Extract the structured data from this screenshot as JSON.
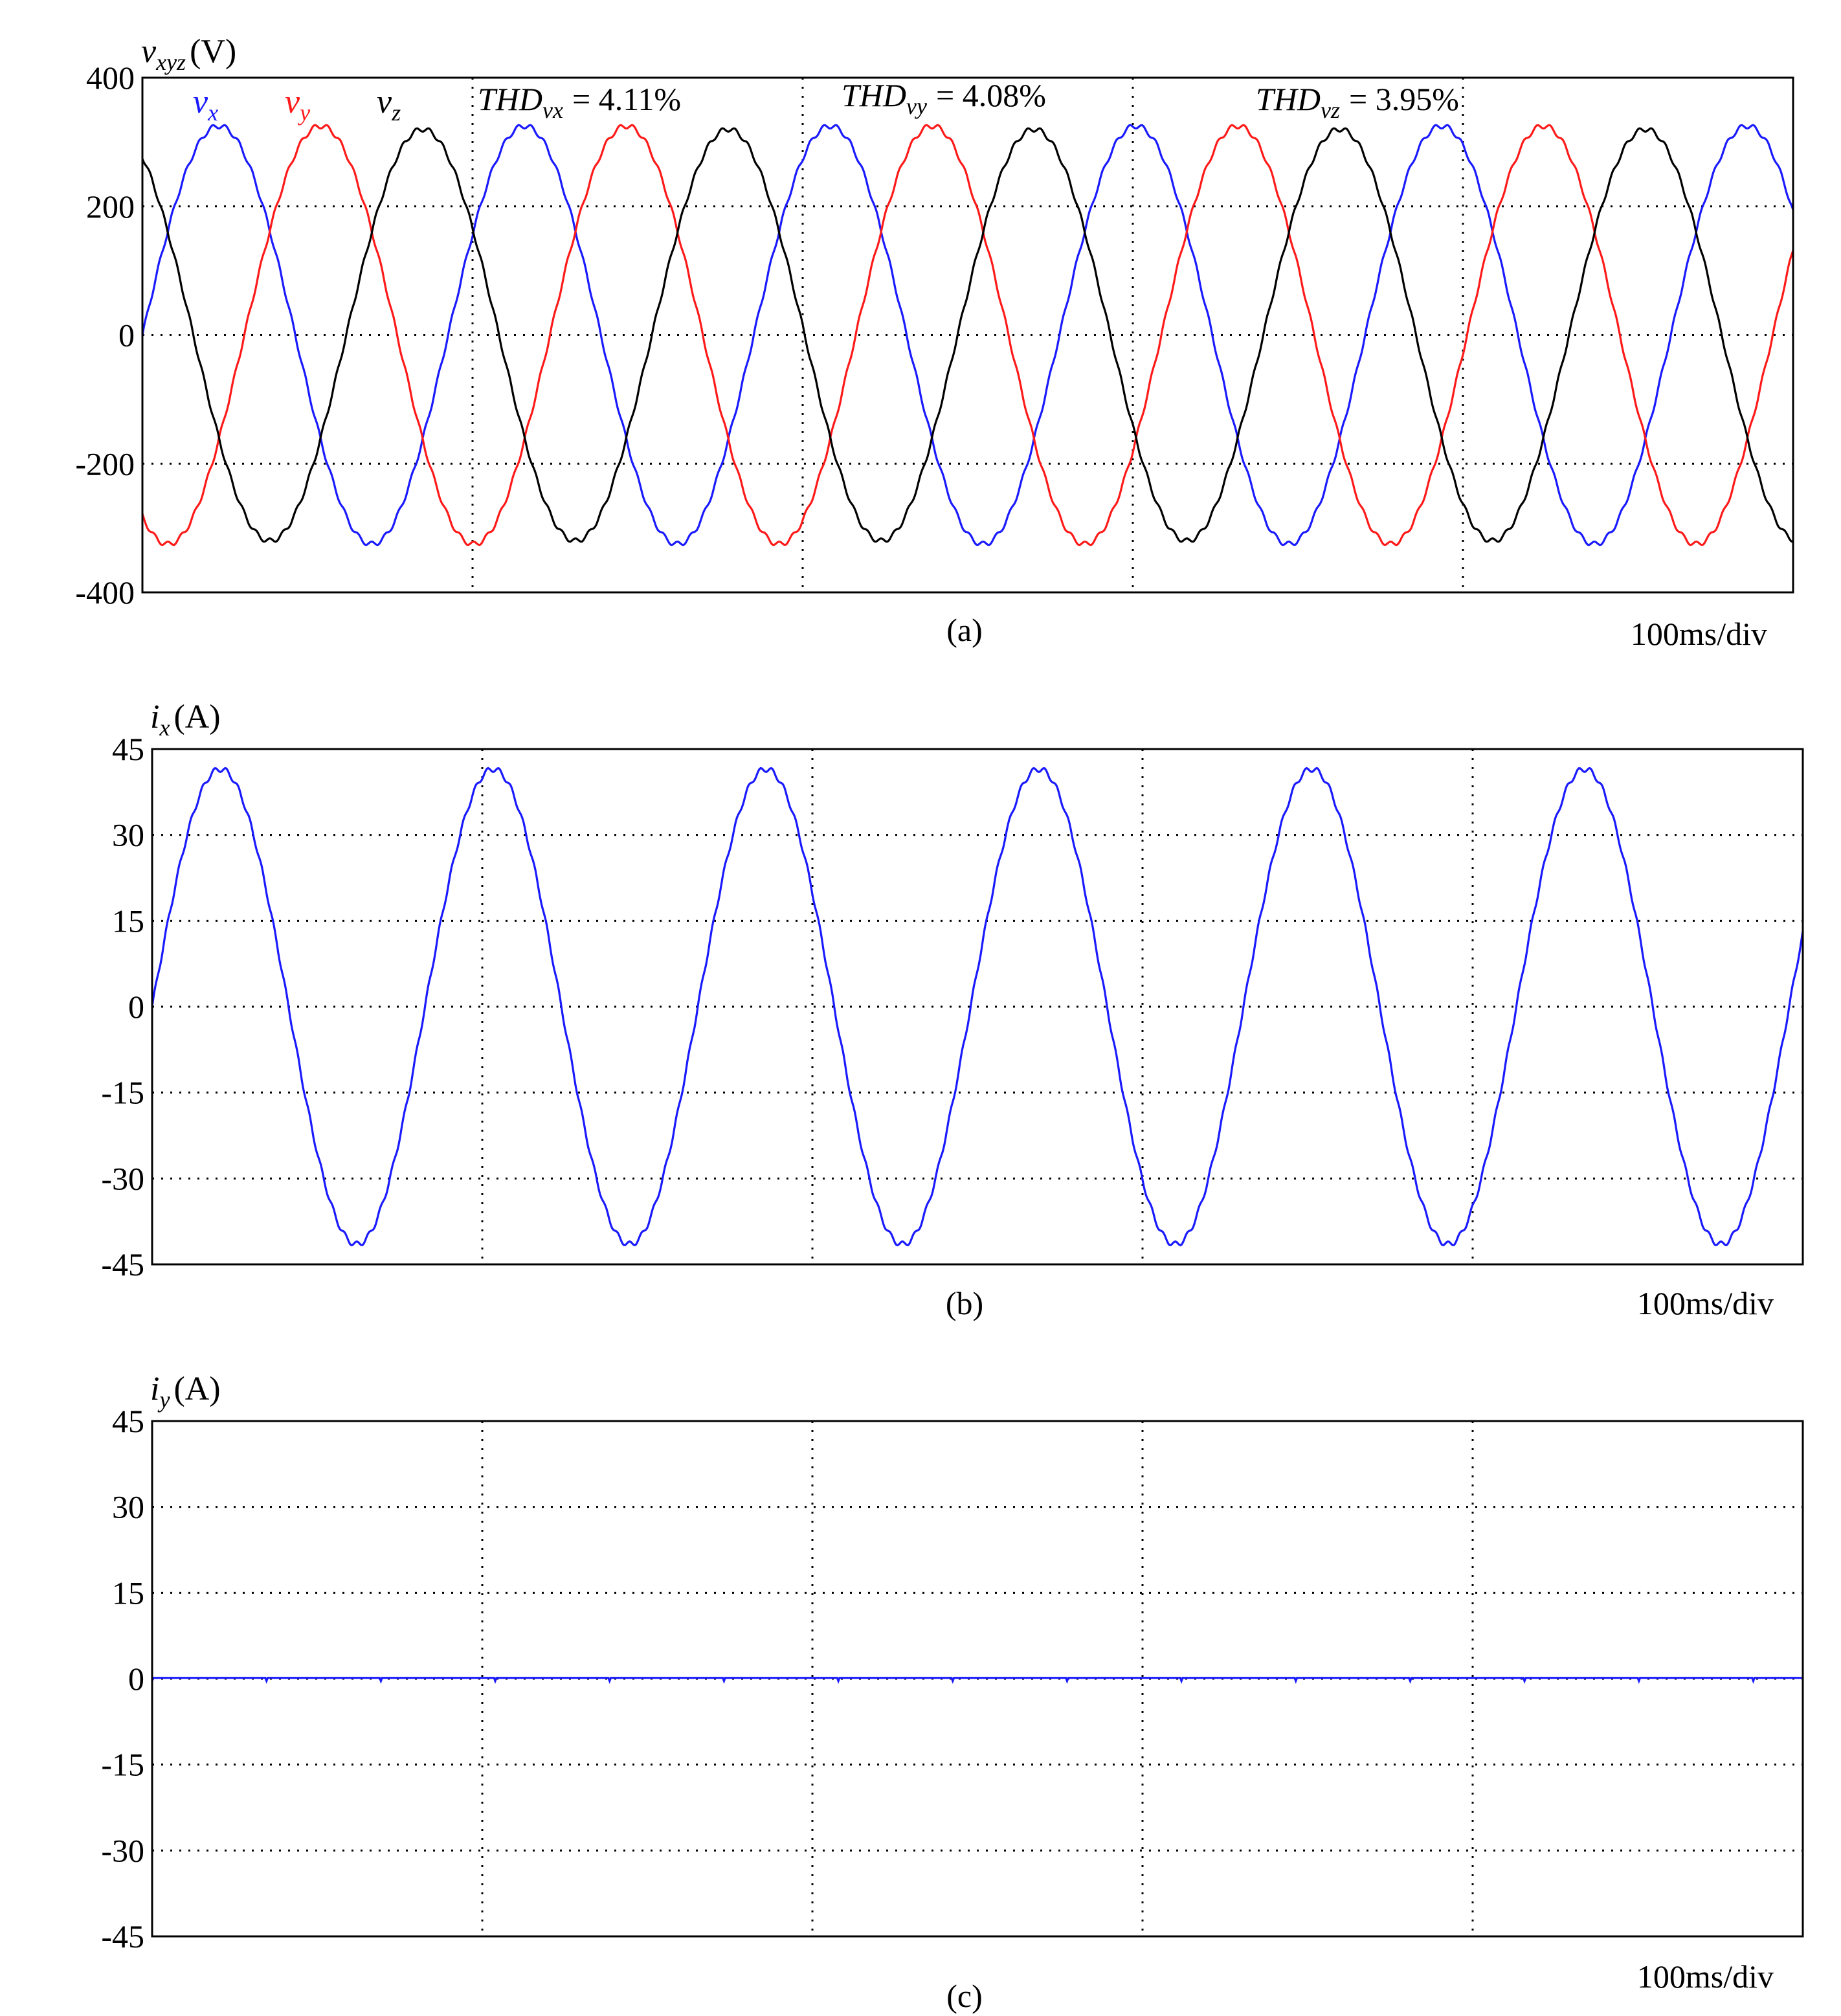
{
  "chart_data": [
    {
      "panel": "a",
      "type": "line",
      "ylabel": {
        "main": "v",
        "sub": "xyz",
        "unit": "(V)"
      },
      "ylim": [
        -400,
        400
      ],
      "yticks": [
        "400",
        "200",
        "0",
        "-200",
        "-400"
      ],
      "ytick_values": [
        400,
        200,
        0,
        -200,
        -400
      ],
      "x_divisions": 5,
      "x_range_ms": [
        0,
        500
      ],
      "grid": true,
      "caption": "(a)",
      "timebase": "100ms/div",
      "series": [
        {
          "name": "v_x",
          "label_main": "v",
          "label_sub": "x",
          "color": "#1a1aff",
          "amplitude": 325,
          "cycles": 5.4,
          "phase_deg": 0
        },
        {
          "name": "v_y",
          "label_main": "v",
          "label_sub": "y",
          "color": "#ff1a1a",
          "amplitude": 325,
          "cycles": 5.4,
          "phase_deg": -120
        },
        {
          "name": "v_z",
          "label_main": "v",
          "label_sub": "z",
          "color": "#000000",
          "amplitude": 320,
          "cycles": 5.4,
          "phase_deg": 120
        }
      ],
      "annotations": [
        {
          "main": "THD",
          "sub": "vx",
          "value": "= 4.11%"
        },
        {
          "main": "THD",
          "sub": "vy",
          "value": "= 4.08%"
        },
        {
          "main": "THD",
          "sub": "vz",
          "value": "= 3.95%"
        }
      ]
    },
    {
      "panel": "b",
      "type": "line",
      "ylabel": {
        "main": "i",
        "sub": "x",
        "unit": "(A)"
      },
      "ylim": [
        -45,
        45
      ],
      "yticks": [
        "45",
        "30",
        "15",
        "0",
        "-15",
        "-30",
        "-45"
      ],
      "ytick_values": [
        45,
        30,
        15,
        0,
        -15,
        -30,
        -45
      ],
      "x_divisions": 5,
      "x_range_ms": [
        0,
        500
      ],
      "grid": true,
      "caption": "(b)",
      "timebase": "100ms/div",
      "series": [
        {
          "name": "i_x",
          "color": "#1a1aff",
          "amplitude": 41.5,
          "cycles": 6.05,
          "phase_deg": 0
        }
      ]
    },
    {
      "panel": "c",
      "type": "line",
      "ylabel": {
        "main": "i",
        "sub": "y",
        "unit": "(A)"
      },
      "ylim": [
        -45,
        45
      ],
      "yticks": [
        "45",
        "30",
        "15",
        "0",
        "-15",
        "-30",
        "-45"
      ],
      "ytick_values": [
        45,
        30,
        15,
        0,
        -15,
        -30,
        -45
      ],
      "x_divisions": 5,
      "x_range_ms": [
        0,
        500
      ],
      "grid": true,
      "caption": "(c)",
      "timebase": "100ms/div",
      "series": [
        {
          "name": "i_y",
          "color": "#1a1aff",
          "amplitude": 0,
          "cycles": 6,
          "phase_deg": 0
        }
      ]
    }
  ]
}
